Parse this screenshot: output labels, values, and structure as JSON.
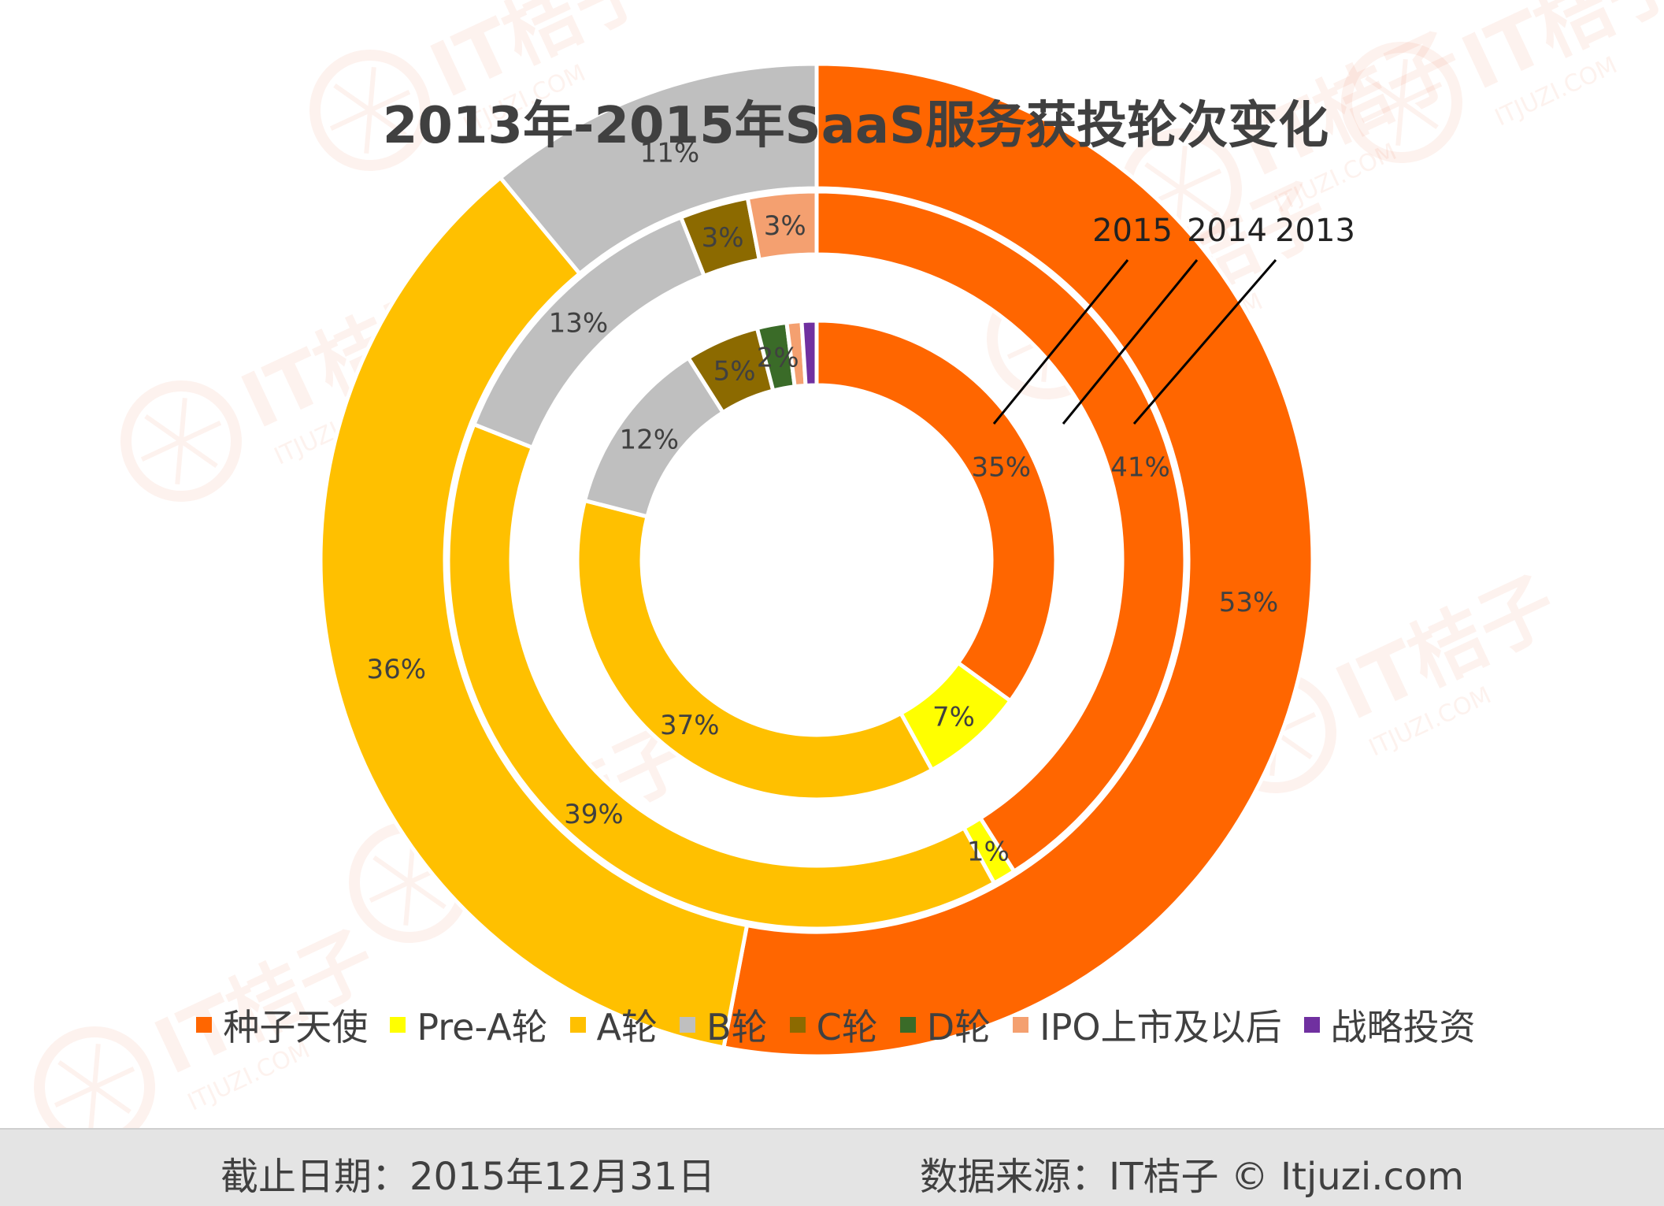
{
  "chart_data": {
    "type": "donut",
    "title": "2013年-2015年SaaS服务获投轮次变化",
    "categories": [
      "种子天使",
      "Pre-A轮",
      "A轮",
      "B轮",
      "C轮",
      "D轮",
      "IPO上市及以后",
      "战略投资"
    ],
    "colors": [
      "#FF6600",
      "#FFFF00",
      "#FFC000",
      "#BFBFBF",
      "#8C6A00",
      "#3A6B28",
      "#F4A070",
      "#7030A0"
    ],
    "series": [
      {
        "name": "2013",
        "ring": "outer",
        "values": [
          53,
          0,
          36,
          11,
          0,
          0,
          0,
          0
        ],
        "labels": [
          "53%",
          "",
          "36%",
          "11%",
          "",
          "",
          "",
          ""
        ]
      },
      {
        "name": "2014",
        "ring": "middle",
        "values": [
          41,
          1,
          39,
          13,
          3,
          0,
          3,
          0
        ],
        "labels": [
          "41%",
          "1%",
          "39%",
          "13%",
          "3%",
          "",
          "3%",
          ""
        ]
      },
      {
        "name": "2015",
        "ring": "inner",
        "values": [
          35,
          7,
          37,
          12,
          5,
          2,
          1,
          1
        ],
        "labels": [
          "35%",
          "7%",
          "37%",
          "12%",
          "5%",
          "2%",
          "",
          ""
        ]
      }
    ],
    "series_label_text": "2015  2014  2013",
    "series_label_values": [
      "2015",
      "2014",
      "2013"
    ]
  },
  "footer": {
    "date_text": "截止日期：2015年12月31日",
    "source_text": "数据来源：IT桔子 © Itjuzi.com"
  },
  "watermark": {
    "brand": "IT桔子",
    "domain": "ITJUZI.COM"
  }
}
